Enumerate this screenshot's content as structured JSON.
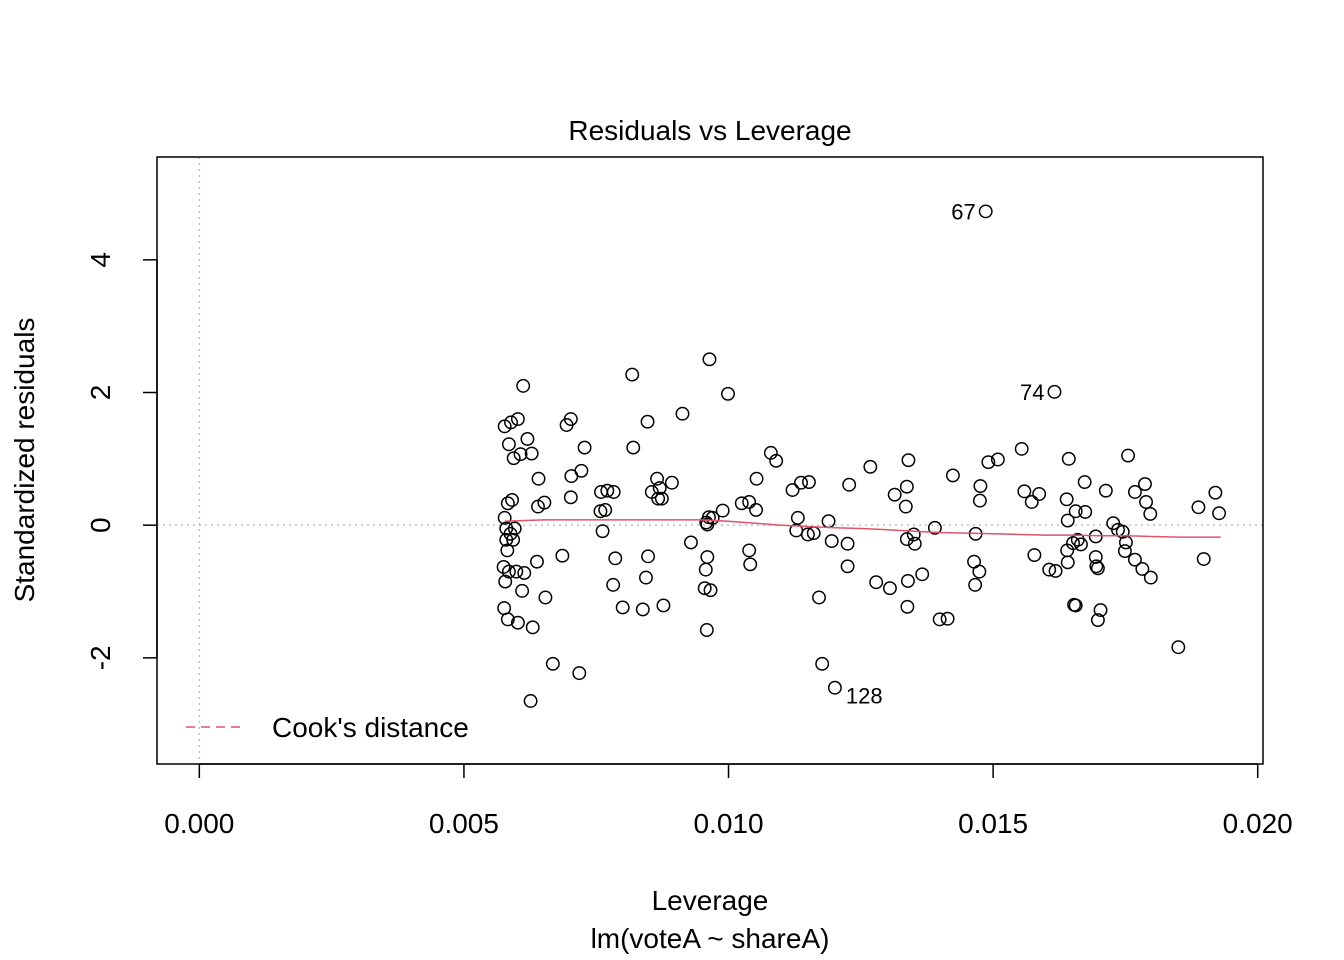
{
  "chart_data": {
    "type": "scatter",
    "title": "Residuals vs Leverage",
    "xlabel": "Leverage",
    "subtitle": "lm(voteA ~ shareA)",
    "ylabel": "Standardized residuals",
    "xlim": [
      -0.0008,
      0.0201
    ],
    "ylim": [
      -3.6,
      5.55
    ],
    "x_ticks": [
      {
        "value": 0.0,
        "label": "0.000"
      },
      {
        "value": 0.005,
        "label": "0.005"
      },
      {
        "value": 0.01,
        "label": "0.010"
      },
      {
        "value": 0.015,
        "label": "0.015"
      },
      {
        "value": 0.02,
        "label": "0.020"
      }
    ],
    "y_ticks": [
      {
        "value": -2,
        "label": "-2"
      },
      {
        "value": 0,
        "label": "0"
      },
      {
        "value": 2,
        "label": "2"
      },
      {
        "value": 4,
        "label": "4"
      }
    ],
    "reference_lines": {
      "vertical_x": 0,
      "horizontal_y": 0
    },
    "grid": false,
    "legend": {
      "position": "bottom-left",
      "entries": [
        {
          "name": "Cook's distance",
          "style": "dashed",
          "color": "#DF536B"
        }
      ]
    },
    "colors": {
      "points": "#000000",
      "smooth": "#DF536B",
      "reference": "#BEBEBE"
    },
    "points": [
      [
        0.00577,
        1.49
      ],
      [
        0.00589,
        1.55
      ],
      [
        0.00602,
        1.6
      ],
      [
        0.00612,
        2.1
      ],
      [
        0.00585,
        1.22
      ],
      [
        0.00607,
        1.07
      ],
      [
        0.0062,
        1.3
      ],
      [
        0.00594,
        1.01
      ],
      [
        0.00628,
        1.08
      ],
      [
        0.00583,
        0.33
      ],
      [
        0.00591,
        0.38
      ],
      [
        0.00577,
        0.11
      ],
      [
        0.0058,
        -0.05
      ],
      [
        0.00588,
        -0.13
      ],
      [
        0.00596,
        -0.05
      ],
      [
        0.0058,
        -0.22
      ],
      [
        0.00593,
        -0.22
      ],
      [
        0.00582,
        -0.38
      ],
      [
        0.00575,
        -0.63
      ],
      [
        0.00585,
        -0.7
      ],
      [
        0.00599,
        -0.7
      ],
      [
        0.00614,
        -0.72
      ],
      [
        0.00578,
        -0.85
      ],
      [
        0.0061,
        -0.99
      ],
      [
        0.00576,
        -1.25
      ],
      [
        0.00583,
        -1.42
      ],
      [
        0.00602,
        -1.47
      ],
      [
        0.0063,
        -1.54
      ],
      [
        0.00641,
        0.7
      ],
      [
        0.0064,
        0.28
      ],
      [
        0.00652,
        0.34
      ],
      [
        0.00638,
        -0.55
      ],
      [
        0.00654,
        -1.09
      ],
      [
        0.00626,
        -2.65
      ],
      [
        0.00668,
        -2.09
      ],
      [
        0.00686,
        -0.46
      ],
      [
        0.00694,
        1.51
      ],
      [
        0.00702,
        1.6
      ],
      [
        0.00702,
        0.42
      ],
      [
        0.00703,
        0.74
      ],
      [
        0.00722,
        0.82
      ],
      [
        0.00728,
        1.17
      ],
      [
        0.00718,
        -2.23
      ],
      [
        0.00759,
        0.5
      ],
      [
        0.00771,
        0.52
      ],
      [
        0.00783,
        0.5
      ],
      [
        0.00758,
        0.21
      ],
      [
        0.00767,
        0.23
      ],
      [
        0.00762,
        -0.09
      ],
      [
        0.00786,
        -0.5
      ],
      [
        0.00782,
        -0.9
      ],
      [
        0.008,
        -1.24
      ],
      [
        0.00818,
        2.27
      ],
      [
        0.0082,
        1.17
      ],
      [
        0.00847,
        1.56
      ],
      [
        0.00855,
        0.5
      ],
      [
        0.00865,
        0.7
      ],
      [
        0.0087,
        0.56
      ],
      [
        0.00867,
        0.4
      ],
      [
        0.00874,
        0.4
      ],
      [
        0.00893,
        0.64
      ],
      [
        0.00848,
        -0.47
      ],
      [
        0.00844,
        -0.79
      ],
      [
        0.00838,
        -1.27
      ],
      [
        0.00877,
        -1.21
      ],
      [
        0.00913,
        1.68
      ],
      [
        0.00964,
        2.5
      ],
      [
        0.00999,
        1.98
      ],
      [
        0.00963,
        0.12
      ],
      [
        0.0097,
        0.11
      ],
      [
        0.00958,
        0.04
      ],
      [
        0.0096,
        0.01
      ],
      [
        0.00989,
        0.22
      ],
      [
        0.00929,
        -0.26
      ],
      [
        0.0096,
        -0.48
      ],
      [
        0.00957,
        -0.67
      ],
      [
        0.00955,
        -0.95
      ],
      [
        0.00966,
        -0.98
      ],
      [
        0.00959,
        -1.58
      ],
      [
        0.01025,
        0.33
      ],
      [
        0.01039,
        0.35
      ],
      [
        0.01052,
        0.23
      ],
      [
        0.01053,
        0.7
      ],
      [
        0.0108,
        1.09
      ],
      [
        0.0109,
        0.97
      ],
      [
        0.01039,
        -0.38
      ],
      [
        0.01041,
        -0.59
      ],
      [
        0.01121,
        0.53
      ],
      [
        0.01137,
        0.64
      ],
      [
        0.01152,
        0.65
      ],
      [
        0.01131,
        0.11
      ],
      [
        0.01128,
        -0.08
      ],
      [
        0.0115,
        -0.14
      ],
      [
        0.01161,
        -0.12
      ],
      [
        0.01171,
        -1.09
      ],
      [
        0.01177,
        -2.09
      ],
      [
        0.01201,
        -2.45
      ],
      [
        0.01189,
        0.06
      ],
      [
        0.01195,
        -0.24
      ],
      [
        0.01228,
        0.61
      ],
      [
        0.01268,
        0.88
      ],
      [
        0.01225,
        -0.28
      ],
      [
        0.01225,
        -0.62
      ],
      [
        0.01279,
        -0.86
      ],
      [
        0.01305,
        -0.95
      ],
      [
        0.01314,
        0.46
      ],
      [
        0.0134,
        0.98
      ],
      [
        0.01337,
        0.58
      ],
      [
        0.01335,
        0.28
      ],
      [
        0.01337,
        -0.21
      ],
      [
        0.01339,
        -0.84
      ],
      [
        0.01338,
        -1.23
      ],
      [
        0.0135,
        -0.14
      ],
      [
        0.01352,
        -0.28
      ],
      [
        0.01366,
        -0.74
      ],
      [
        0.0139,
        -0.04
      ],
      [
        0.01399,
        -1.42
      ],
      [
        0.01414,
        -1.41
      ],
      [
        0.01424,
        0.75
      ],
      [
        0.01464,
        -0.55
      ],
      [
        0.01467,
        -0.13
      ],
      [
        0.01466,
        -0.9
      ],
      [
        0.01474,
        -0.7
      ],
      [
        0.01475,
        0.37
      ],
      [
        0.01476,
        0.59
      ],
      [
        0.01486,
        4.73
      ],
      [
        0.01491,
        0.95
      ],
      [
        0.01509,
        0.99
      ],
      [
        0.01554,
        1.15
      ],
      [
        0.01559,
        0.51
      ],
      [
        0.01573,
        0.35
      ],
      [
        0.01587,
        0.47
      ],
      [
        0.01578,
        -0.45
      ],
      [
        0.01606,
        -0.67
      ],
      [
        0.01618,
        -0.69
      ],
      [
        0.01616,
        2.01
      ],
      [
        0.01643,
        1.0
      ],
      [
        0.01639,
        0.39
      ],
      [
        0.01641,
        0.07
      ],
      [
        0.01656,
        0.21
      ],
      [
        0.01674,
        0.2
      ],
      [
        0.0164,
        -0.38
      ],
      [
        0.01651,
        -0.27
      ],
      [
        0.0166,
        -0.22
      ],
      [
        0.01666,
        -0.29
      ],
      [
        0.01641,
        -0.56
      ],
      [
        0.01653,
        -1.2
      ],
      [
        0.01656,
        -1.21
      ],
      [
        0.01673,
        0.65
      ],
      [
        0.01694,
        -0.17
      ],
      [
        0.01694,
        -0.48
      ],
      [
        0.01695,
        -0.62
      ],
      [
        0.01698,
        -0.65
      ],
      [
        0.01703,
        -1.28
      ],
      [
        0.01698,
        -1.43
      ],
      [
        0.01713,
        0.52
      ],
      [
        0.01727,
        0.03
      ],
      [
        0.01736,
        -0.07
      ],
      [
        0.01745,
        -0.1
      ],
      [
        0.01749,
        -0.39
      ],
      [
        0.01751,
        -0.26
      ],
      [
        0.01755,
        1.05
      ],
      [
        0.01768,
        0.5
      ],
      [
        0.01768,
        -0.52
      ],
      [
        0.01782,
        -0.66
      ],
      [
        0.01787,
        0.62
      ],
      [
        0.01789,
        0.35
      ],
      [
        0.01797,
        0.17
      ],
      [
        0.01798,
        -0.79
      ],
      [
        0.0185,
        -1.84
      ],
      [
        0.01888,
        0.27
      ],
      [
        0.01898,
        -0.51
      ],
      [
        0.0192,
        0.49
      ],
      [
        0.01927,
        0.18
      ]
    ],
    "labeled_points": [
      {
        "x": 0.01486,
        "y": 4.73,
        "label": "67",
        "side": "left"
      },
      {
        "x": 0.01616,
        "y": 2.01,
        "label": "74",
        "side": "left"
      },
      {
        "x": 0.01201,
        "y": -2.45,
        "label": "128",
        "side": "right"
      }
    ],
    "smooth_line": [
      [
        0.00577,
        0.06
      ],
      [
        0.0065,
        0.08
      ],
      [
        0.0075,
        0.08
      ],
      [
        0.0085,
        0.08
      ],
      [
        0.0095,
        0.08
      ],
      [
        0.01,
        0.06
      ],
      [
        0.0105,
        0.03
      ],
      [
        0.011,
        0.0
      ],
      [
        0.0115,
        -0.02
      ],
      [
        0.012,
        -0.04
      ],
      [
        0.0125,
        -0.05
      ],
      [
        0.013,
        -0.07
      ],
      [
        0.0135,
        -0.09
      ],
      [
        0.014,
        -0.11
      ],
      [
        0.0145,
        -0.12
      ],
      [
        0.015,
        -0.13
      ],
      [
        0.0155,
        -0.14
      ],
      [
        0.016,
        -0.15
      ],
      [
        0.0165,
        -0.15
      ],
      [
        0.017,
        -0.16
      ],
      [
        0.0175,
        -0.16
      ],
      [
        0.018,
        -0.17
      ],
      [
        0.0185,
        -0.18
      ],
      [
        0.0193,
        -0.18
      ]
    ]
  }
}
